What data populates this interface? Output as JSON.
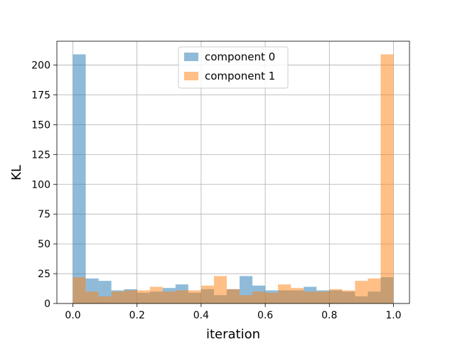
{
  "chart_data": {
    "type": "bar",
    "subtype": "overlaid-histogram",
    "title": "",
    "xlabel": "iteration",
    "ylabel": "KL",
    "xlim": [
      -0.05,
      1.05
    ],
    "ylim": [
      0,
      220
    ],
    "xticks": [
      "0.0",
      "0.2",
      "0.4",
      "0.6",
      "0.8",
      "1.0"
    ],
    "yticks": [
      "0",
      "25",
      "50",
      "75",
      "100",
      "125",
      "150",
      "175",
      "200"
    ],
    "grid": true,
    "legend_position": "top-center",
    "bin_edges": [
      0.0,
      0.04,
      0.08,
      0.12,
      0.16,
      0.2,
      0.24,
      0.28,
      0.32,
      0.36,
      0.4,
      0.44,
      0.48,
      0.52,
      0.56,
      0.6,
      0.64,
      0.68,
      0.72,
      0.76,
      0.8,
      0.84,
      0.88,
      0.92,
      0.96,
      1.0
    ],
    "series": [
      {
        "name": "component 0",
        "color": "#1f77b4",
        "alpha": 0.5,
        "values": [
          209,
          21,
          19,
          11,
          12,
          9,
          10,
          13,
          16,
          9,
          12,
          7,
          12,
          23,
          15,
          11,
          11,
          11,
          14,
          11,
          11,
          10,
          6,
          10,
          22
        ]
      },
      {
        "name": "component 1",
        "color": "#ff7f0e",
        "alpha": 0.5,
        "values": [
          22,
          10,
          6,
          10,
          11,
          11,
          14,
          10,
          11,
          11,
          15,
          23,
          12,
          7,
          10,
          9,
          16,
          13,
          10,
          10,
          12,
          11,
          19,
          21,
          209
        ]
      }
    ]
  }
}
